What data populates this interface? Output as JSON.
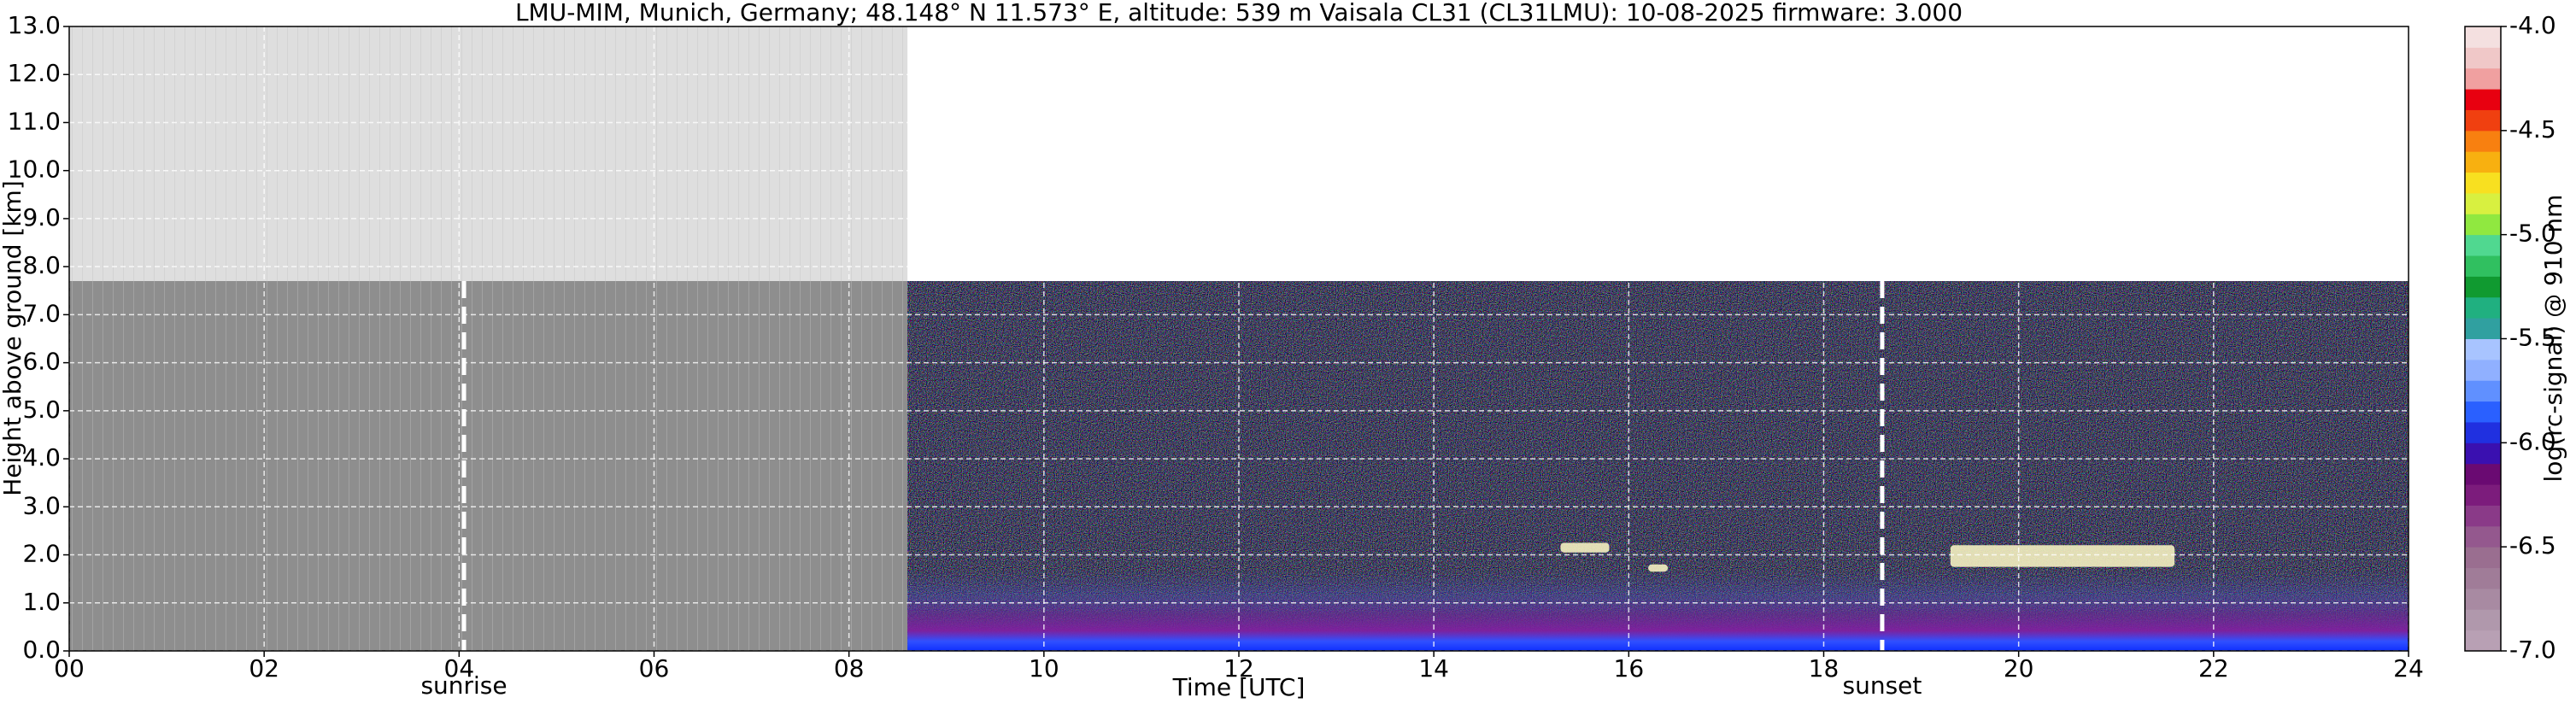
{
  "chart_data": {
    "type": "heatmap",
    "title": "LMU-MIM, Munich, Germany; 48.148° N 11.573° E, altitude: 539 m    Vaisala CL31 (CL31LMU): 10-08-2025    firmware: 3.000",
    "xlabel": "Time [UTC]",
    "ylabel": "Height above ground [km]",
    "colorbar_label": "log(rc-signal) @ 910 nm",
    "xlim": [
      0,
      24
    ],
    "ylim": [
      0,
      13
    ],
    "xticks": [
      {
        "value": 0,
        "label": "00"
      },
      {
        "value": 2,
        "label": "02"
      },
      {
        "value": 4,
        "label": "04"
      },
      {
        "value": 6,
        "label": "06"
      },
      {
        "value": 8,
        "label": "08"
      },
      10,
      12,
      14,
      16,
      18,
      20,
      22,
      24
    ],
    "yticks": [
      {
        "value": 0,
        "label": "0.0"
      },
      {
        "value": 1,
        "label": "1.0"
      },
      {
        "value": 2,
        "label": "2.0"
      },
      {
        "value": 3,
        "label": "3.0"
      },
      {
        "value": 4,
        "label": "4.0"
      },
      {
        "value": 5,
        "label": "5.0"
      },
      {
        "value": 6,
        "label": "6.0"
      },
      {
        "value": 7,
        "label": "7.0"
      },
      {
        "value": 8,
        "label": "8.0"
      },
      {
        "value": 9,
        "label": "9.0"
      },
      {
        "value": 10,
        "label": "10.0"
      },
      {
        "value": 11,
        "label": "11.0"
      },
      {
        "value": 12,
        "label": "12.0"
      },
      {
        "value": 13,
        "label": "13.0"
      }
    ],
    "clim": [
      -7,
      -4
    ],
    "cticks": [
      {
        "value": -4,
        "label": "-4.0"
      },
      {
        "value": -4.5,
        "label": "-4.5"
      },
      {
        "value": -5,
        "label": "-5.0"
      },
      {
        "value": -5.5,
        "label": "-5.5"
      },
      {
        "value": -6,
        "label": "-6.0"
      },
      {
        "value": -6.5,
        "label": "-6.5"
      },
      {
        "value": -7,
        "label": "-7.0"
      }
    ],
    "colormap": [
      "#b8a0b4",
      "#b098ac",
      "#a88aa2",
      "#a07c98",
      "#9a6e90",
      "#94588e",
      "#8a3a88",
      "#7c1c7c",
      "#6a0a72",
      "#3a10b0",
      "#2030e0",
      "#2a60ff",
      "#6090ff",
      "#90b0ff",
      "#a8c4ff",
      "#30a0a0",
      "#20b080",
      "#109a30",
      "#30c060",
      "#50d890",
      "#90e840",
      "#d8f040",
      "#f8e020",
      "#f8b010",
      "#f88010",
      "#f04010",
      "#e80010",
      "#f0a0a0",
      "#f0c8c8",
      "#f4e0e0"
    ],
    "grid": true,
    "no_data_until": 8.6,
    "max_range": 7.7,
    "annotations": [
      {
        "label": "sunrise",
        "x": 4.05
      },
      {
        "label": "sunset",
        "x": 18.6
      }
    ],
    "cloud_layers": [
      {
        "start": 15.3,
        "end": 15.8,
        "bottom": 2.05,
        "top": 2.25
      },
      {
        "start": 16.2,
        "end": 16.4,
        "bottom": 1.65,
        "top": 1.8
      },
      {
        "start": 19.3,
        "end": 21.6,
        "bottom": 1.75,
        "top": 2.2
      }
    ]
  }
}
